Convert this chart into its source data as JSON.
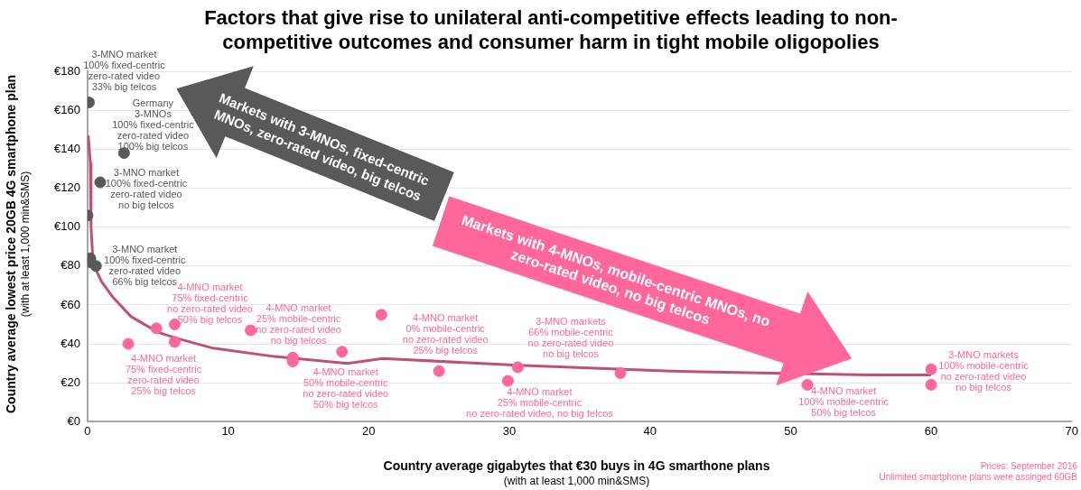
{
  "chart_data": {
    "type": "scatter",
    "title": "Factors that give rise to unilateral anti-competitive effects leading to non-competitive outcomes and consumer harm in tight mobile oligopolies",
    "xlabel": "Country average gigabytes that €30 buys in 4G smarthone plans\n(with at least 1,000 min&SMS)",
    "ylabel": "Country average lowest price 20GB 4G smartphone plan\n(with at least 1,000 min&SMS)",
    "xlim": [
      0,
      70
    ],
    "xticks": [
      0,
      10,
      20,
      30,
      40,
      50,
      60,
      70
    ],
    "ylim": [
      0,
      180
    ],
    "yticks": [
      {
        "value": 0,
        "label": "€0"
      },
      {
        "value": 20,
        "label": "€20"
      },
      {
        "value": 40,
        "label": "€40"
      },
      {
        "value": 60,
        "label": "€60"
      },
      {
        "value": 80,
        "label": "€80"
      },
      {
        "value": 100,
        "label": "€100"
      },
      {
        "value": 120,
        "label": "€120"
      },
      {
        "value": 140,
        "label": "€140"
      },
      {
        "value": 160,
        "label": "€160"
      },
      {
        "value": 180,
        "label": "€180"
      }
    ],
    "grid": "y",
    "marker": "circle",
    "legend": false,
    "series": [
      {
        "type": "scatter",
        "color": "#595959",
        "x": [
          0.1,
          2.6,
          0.9,
          0,
          0.2,
          0.2,
          0.6
        ],
        "values": [
          164,
          138,
          123,
          106,
          84,
          82,
          80
        ]
      },
      {
        "type": "scatter",
        "color": "#ff6699",
        "x": [
          2.9,
          4.9,
          6.2,
          6.2,
          11.6,
          14.6,
          14.6,
          18.1,
          20.9,
          25,
          29.9,
          30.6,
          37.9,
          51.2,
          60,
          60
        ],
        "values": [
          40,
          48,
          50,
          41,
          47,
          33,
          31,
          36,
          55,
          26,
          21,
          28,
          25,
          19,
          27,
          19
        ]
      },
      {
        "type": "line",
        "color": "#c0507a",
        "line_style": "solid",
        "marker": "none",
        "x": [
          0.05,
          0.2,
          0.25,
          0.4,
          1,
          1.8,
          3.1,
          5,
          6.3,
          8.8,
          13.3,
          18.5,
          21,
          30.6,
          41.5,
          55.6,
          60
        ],
        "values": [
          147,
          133,
          100,
          81,
          72,
          64,
          54,
          46,
          43,
          38,
          33.5,
          30,
          32.5,
          29,
          26,
          24,
          24
        ]
      }
    ],
    "annotations": [
      "Markets with 3-MNOs, fixed-centric MNOs, zero-rated video, big telcos",
      "Markets with 4-MNOs, mobile-centric MNOs, no zero-rated video, no big telcos",
      "Prices: September 2016",
      "Unlimited smartphone plans were assinged 60GB",
      {
        "text": "3-MNO market\n100% fixed-centric\nzero-rated video\n33% big telcos",
        "x": 0.1,
        "y": 164
      },
      {
        "text": "Germany\n3-MNOs\n100% fixed-centric\nzero-rated video\n100% big telcos",
        "x": 2.6,
        "y": 138
      },
      {
        "text": "3-MNO market\n100% fixed-centric\nzero-rated video\nno big telcos",
        "x": 0.9,
        "y": 123
      },
      {
        "text": "3-MNO market\n100% fixed-centric\nzero-rated video\n66% big telcos",
        "x": 0.6,
        "y": 80
      },
      {
        "text": "4-MNO market\n75% fixed-centric\nno zero-rated video\n50% big telcos",
        "x": 6.2,
        "y": 50
      },
      {
        "text": "4-MNO market\n75% fixed-centric\nzero-rated video\n25% big telcos",
        "x": 2.9,
        "y": 40
      },
      {
        "text": "4-MNO market\n25% mobile-centric\nno zero-rated video\nno big telcos",
        "x": 11.6,
        "y": 47
      },
      {
        "text": "4-MNO market\n50% mobile-centric\nno zero-rated video\n50% big telcos",
        "x": 18.1,
        "y": 36
      },
      {
        "text": "4-MNO market\n0% mobile-centric\nno zero-rated video\n25% big telcos",
        "x": 25,
        "y": 26
      },
      {
        "text": "4-MNO market\n25% mobile-centric\nno zero-rated video, no big telcos",
        "x": 29.9,
        "y": 21
      },
      {
        "text": "3-MNO markets\n66% mobile-centric\nno zero-rated video\nno big telcos",
        "x": 37.9,
        "y": 25
      },
      {
        "text": "4-MNO market\n100% mobile-centric\n50% big telcos",
        "x": 51.2,
        "y": 19
      },
      {
        "text": "3-MNO markets\n100% mobile-centric\nno zero-rated video\nno big telcos",
        "x": 60,
        "y": 27
      }
    ]
  }
}
